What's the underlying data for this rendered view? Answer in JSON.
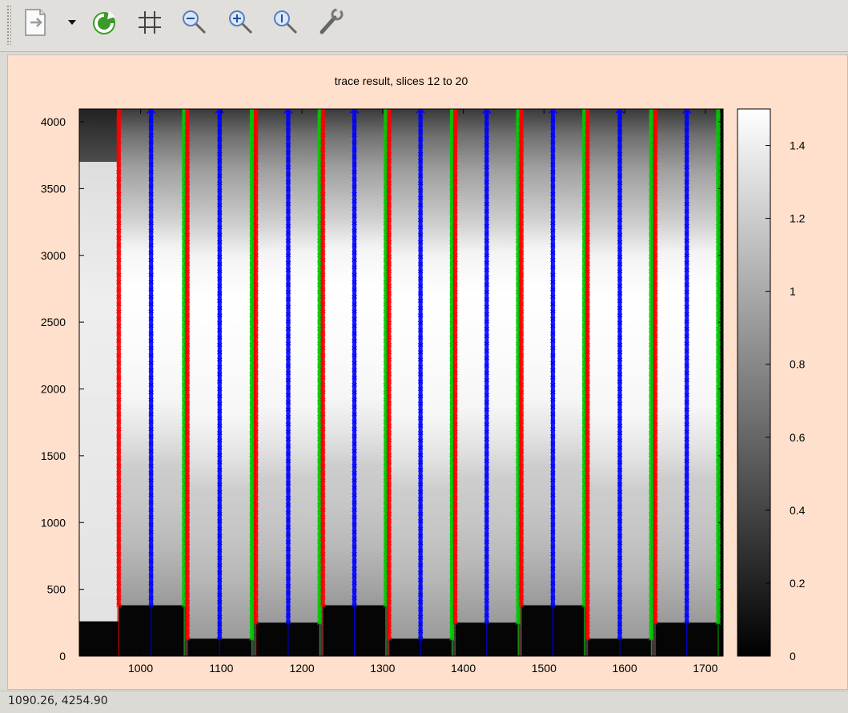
{
  "toolbar": {
    "buttons": [
      {
        "name": "export-button",
        "icon": "export-document-icon"
      },
      {
        "name": "export-menu-arrow",
        "icon": "chevron-down-icon"
      },
      {
        "name": "refresh-button",
        "icon": "refresh-icon"
      },
      {
        "name": "grid-toggle-button",
        "icon": "grid-icon"
      },
      {
        "name": "zoom-out-button",
        "icon": "zoom-out-icon"
      },
      {
        "name": "zoom-in-button",
        "icon": "zoom-in-icon"
      },
      {
        "name": "zoom-reset-button",
        "icon": "zoom-reset-icon"
      },
      {
        "name": "settings-button",
        "icon": "wrench-icon"
      }
    ]
  },
  "status": {
    "coords": "1090.26,  4254.90"
  },
  "chart_data": {
    "type": "heatmap",
    "title": "trace result, slices 12 to 20",
    "xlabel": "",
    "ylabel": "",
    "xlim": [
      924,
      1722
    ],
    "ylim": [
      0,
      4096
    ],
    "xticks": [
      1000,
      1100,
      1200,
      1300,
      1400,
      1500,
      1600,
      1700
    ],
    "yticks": [
      0,
      500,
      1000,
      1500,
      2000,
      2500,
      3000,
      3500,
      4000
    ],
    "colorbar": {
      "range": [
        0,
        1.5
      ],
      "ticks": [
        0,
        0.2,
        0.4,
        0.6,
        0.8,
        1,
        1.2,
        1.4
      ],
      "colormap": "gray"
    },
    "colors": {
      "left_edge": "#ff0000",
      "center": "#0000ff",
      "right_edge": "#00cc00",
      "background": "#ffe0cc"
    },
    "slices": [
      {
        "left": 973,
        "center": 1013,
        "right": 1054,
        "bottom": 380
      },
      {
        "left": 1058,
        "center": 1098,
        "right": 1138,
        "bottom": 130
      },
      {
        "left": 1143,
        "center": 1183,
        "right": 1222,
        "bottom": 250
      },
      {
        "left": 1226,
        "center": 1265,
        "right": 1304,
        "bottom": 380
      },
      {
        "left": 1308,
        "center": 1347,
        "right": 1386,
        "bottom": 130
      },
      {
        "left": 1390,
        "center": 1429,
        "right": 1468,
        "bottom": 250
      },
      {
        "left": 1472,
        "center": 1511,
        "right": 1550,
        "bottom": 380
      },
      {
        "left": 1554,
        "center": 1594,
        "right": 1633,
        "bottom": 130
      },
      {
        "left": 1638,
        "center": 1677,
        "right": 1716,
        "bottom": 250
      }
    ]
  }
}
